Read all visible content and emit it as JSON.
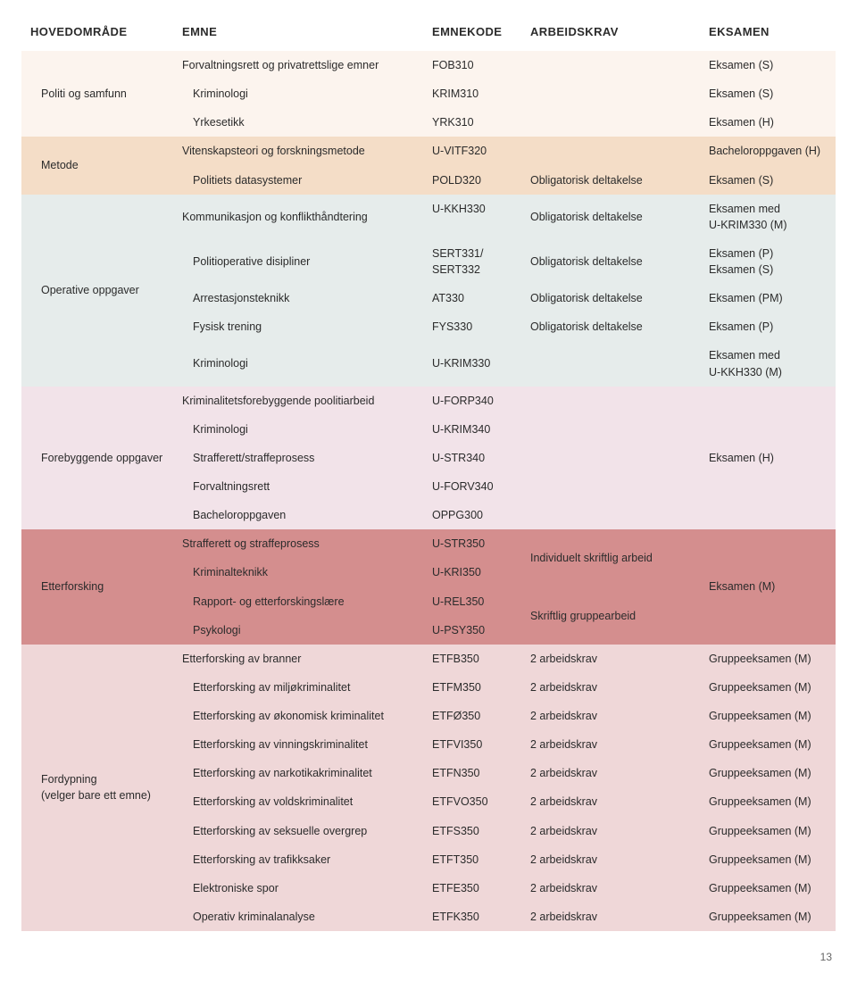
{
  "headers": {
    "hoved": "HOVEDOMRÅDE",
    "emne": "EMNE",
    "kode": "EMNEKODE",
    "arb": "ARBEIDSKRAV",
    "eks": "EKSAMEN"
  },
  "colors": {
    "sec1": "#fcf4ee",
    "sec2": "#f4ddc7",
    "sec3": "#e6eceb",
    "sec4": "#f2e3e9",
    "sec5": "#d48e8e",
    "sec6": "#efd7d8",
    "text": "#2b2b2b"
  },
  "sec1": {
    "group": "Politi og samfunn",
    "r0": {
      "emne": "Forvaltningsrett og privatrettslige emner",
      "kode": "FOB310",
      "eks": "Eksamen (S)"
    },
    "r1": {
      "emne": "Kriminologi",
      "kode": "KRIM310",
      "eks": "Eksamen (S)"
    },
    "r2": {
      "emne": "Yrkesetikk",
      "kode": "YRK310",
      "eks": "Eksamen (H)"
    }
  },
  "sec2": {
    "group": "Metode",
    "r0": {
      "emne": "Vitenskapsteori og forskningsmetode",
      "kode": "U-VITF320",
      "eks": "Bacheloroppgaven (H)"
    },
    "r1": {
      "emne": "Politiets datasystemer",
      "kode": "POLD320",
      "arb": "Obligatorisk deltakelse",
      "eks": "Eksamen (S)"
    }
  },
  "sec3": {
    "group": "Operative oppgaver",
    "r0": {
      "emne": "Kommunikasjon og konflikthåndtering",
      "kode": "U-KKH330",
      "arb": "Obligatorisk deltakelse",
      "eks": "Eksamen med\nU-KRIM330 (M)"
    },
    "r1": {
      "emne": "Politioperative disipliner",
      "kode": "SERT331/\nSERT332",
      "arb": "Obligatorisk deltakelse",
      "eks": "Eksamen (P)\nEksamen (S)"
    },
    "r2": {
      "emne": "Arrestasjonsteknikk",
      "kode": "AT330",
      "arb": "Obligatorisk deltakelse",
      "eks": "Eksamen (PM)"
    },
    "r3": {
      "emne": "Fysisk trening",
      "kode": "FYS330",
      "arb": "Obligatorisk deltakelse",
      "eks": "Eksamen (P)"
    },
    "r4": {
      "emne": "Kriminologi",
      "kode": "U-KRIM330",
      "eks": "Eksamen med\nU-KKH330 (M)"
    }
  },
  "sec4": {
    "group": "Forebyggende oppgaver",
    "r0": {
      "emne": "Kriminalitetsforebyggende poolitiarbeid",
      "kode": "U-FORP340"
    },
    "r1": {
      "emne": "Kriminologi",
      "kode": "U-KRIM340"
    },
    "r2": {
      "emne": "Strafferett/straffeprosess",
      "kode": "U-STR340",
      "eks": "Eksamen (H)"
    },
    "r3": {
      "emne": "Forvaltningsrett",
      "kode": "U-FORV340"
    },
    "r4": {
      "emne": "Bacheloroppgaven",
      "kode": "OPPG300"
    }
  },
  "sec5": {
    "group": "Etterforsking",
    "arb1": "Individuelt skriftlig arbeid",
    "arb2": "Skriftlig gruppearbeid",
    "eks": "Eksamen (M)",
    "r0": {
      "emne": "Strafferett og straffeprosess",
      "kode": "U-STR350"
    },
    "r1": {
      "emne": "Kriminalteknikk",
      "kode": "U-KRI350"
    },
    "r2": {
      "emne": "Rapport- og etterforskingslære",
      "kode": "U-REL350"
    },
    "r3": {
      "emne": "Psykologi",
      "kode": "U-PSY350"
    }
  },
  "sec6": {
    "group": "Fordypning\n(velger bare ett emne)",
    "r0": {
      "emne": "Etterforsking av branner",
      "kode": "ETFB350",
      "arb": "2 arbeidskrav",
      "eks": "Gruppeeksamen (M)"
    },
    "r1": {
      "emne": "Etterforsking av miljøkriminalitet",
      "kode": "ETFM350",
      "arb": "2 arbeidskrav",
      "eks": "Gruppeeksamen (M)"
    },
    "r2": {
      "emne": "Etterforsking av økonomisk kriminalitet",
      "kode": "ETFØ350",
      "arb": "2 arbeidskrav",
      "eks": "Gruppeeksamen (M)"
    },
    "r3": {
      "emne": "Etterforsking av vinningskriminalitet",
      "kode": "ETFVI350",
      "arb": "2 arbeidskrav",
      "eks": "Gruppeeksamen (M)"
    },
    "r4": {
      "emne": "Etterforsking av narkotikakriminalitet",
      "kode": "ETFN350",
      "arb": "2 arbeidskrav",
      "eks": "Gruppeeksamen (M)"
    },
    "r5": {
      "emne": "Etterforsking av voldskriminalitet",
      "kode": "ETFVO350",
      "arb": "2 arbeidskrav",
      "eks": "Gruppeeksamen (M)"
    },
    "r6": {
      "emne": "Etterforsking av seksuelle overgrep",
      "kode": "ETFS350",
      "arb": "2 arbeidskrav",
      "eks": "Gruppeeksamen (M)"
    },
    "r7": {
      "emne": "Etterforsking av trafikksaker",
      "kode": "ETFT350",
      "arb": "2 arbeidskrav",
      "eks": "Gruppeeksamen (M)"
    },
    "r8": {
      "emne": "Elektroniske spor",
      "kode": "ETFE350",
      "arb": "2 arbeidskrav",
      "eks": "Gruppeeksamen (M)"
    },
    "r9": {
      "emne": "Operativ kriminalanalyse",
      "kode": "ETFK350",
      "arb": "2 arbeidskrav",
      "eks": "Gruppeeksamen (M)"
    }
  },
  "page_number": "13"
}
